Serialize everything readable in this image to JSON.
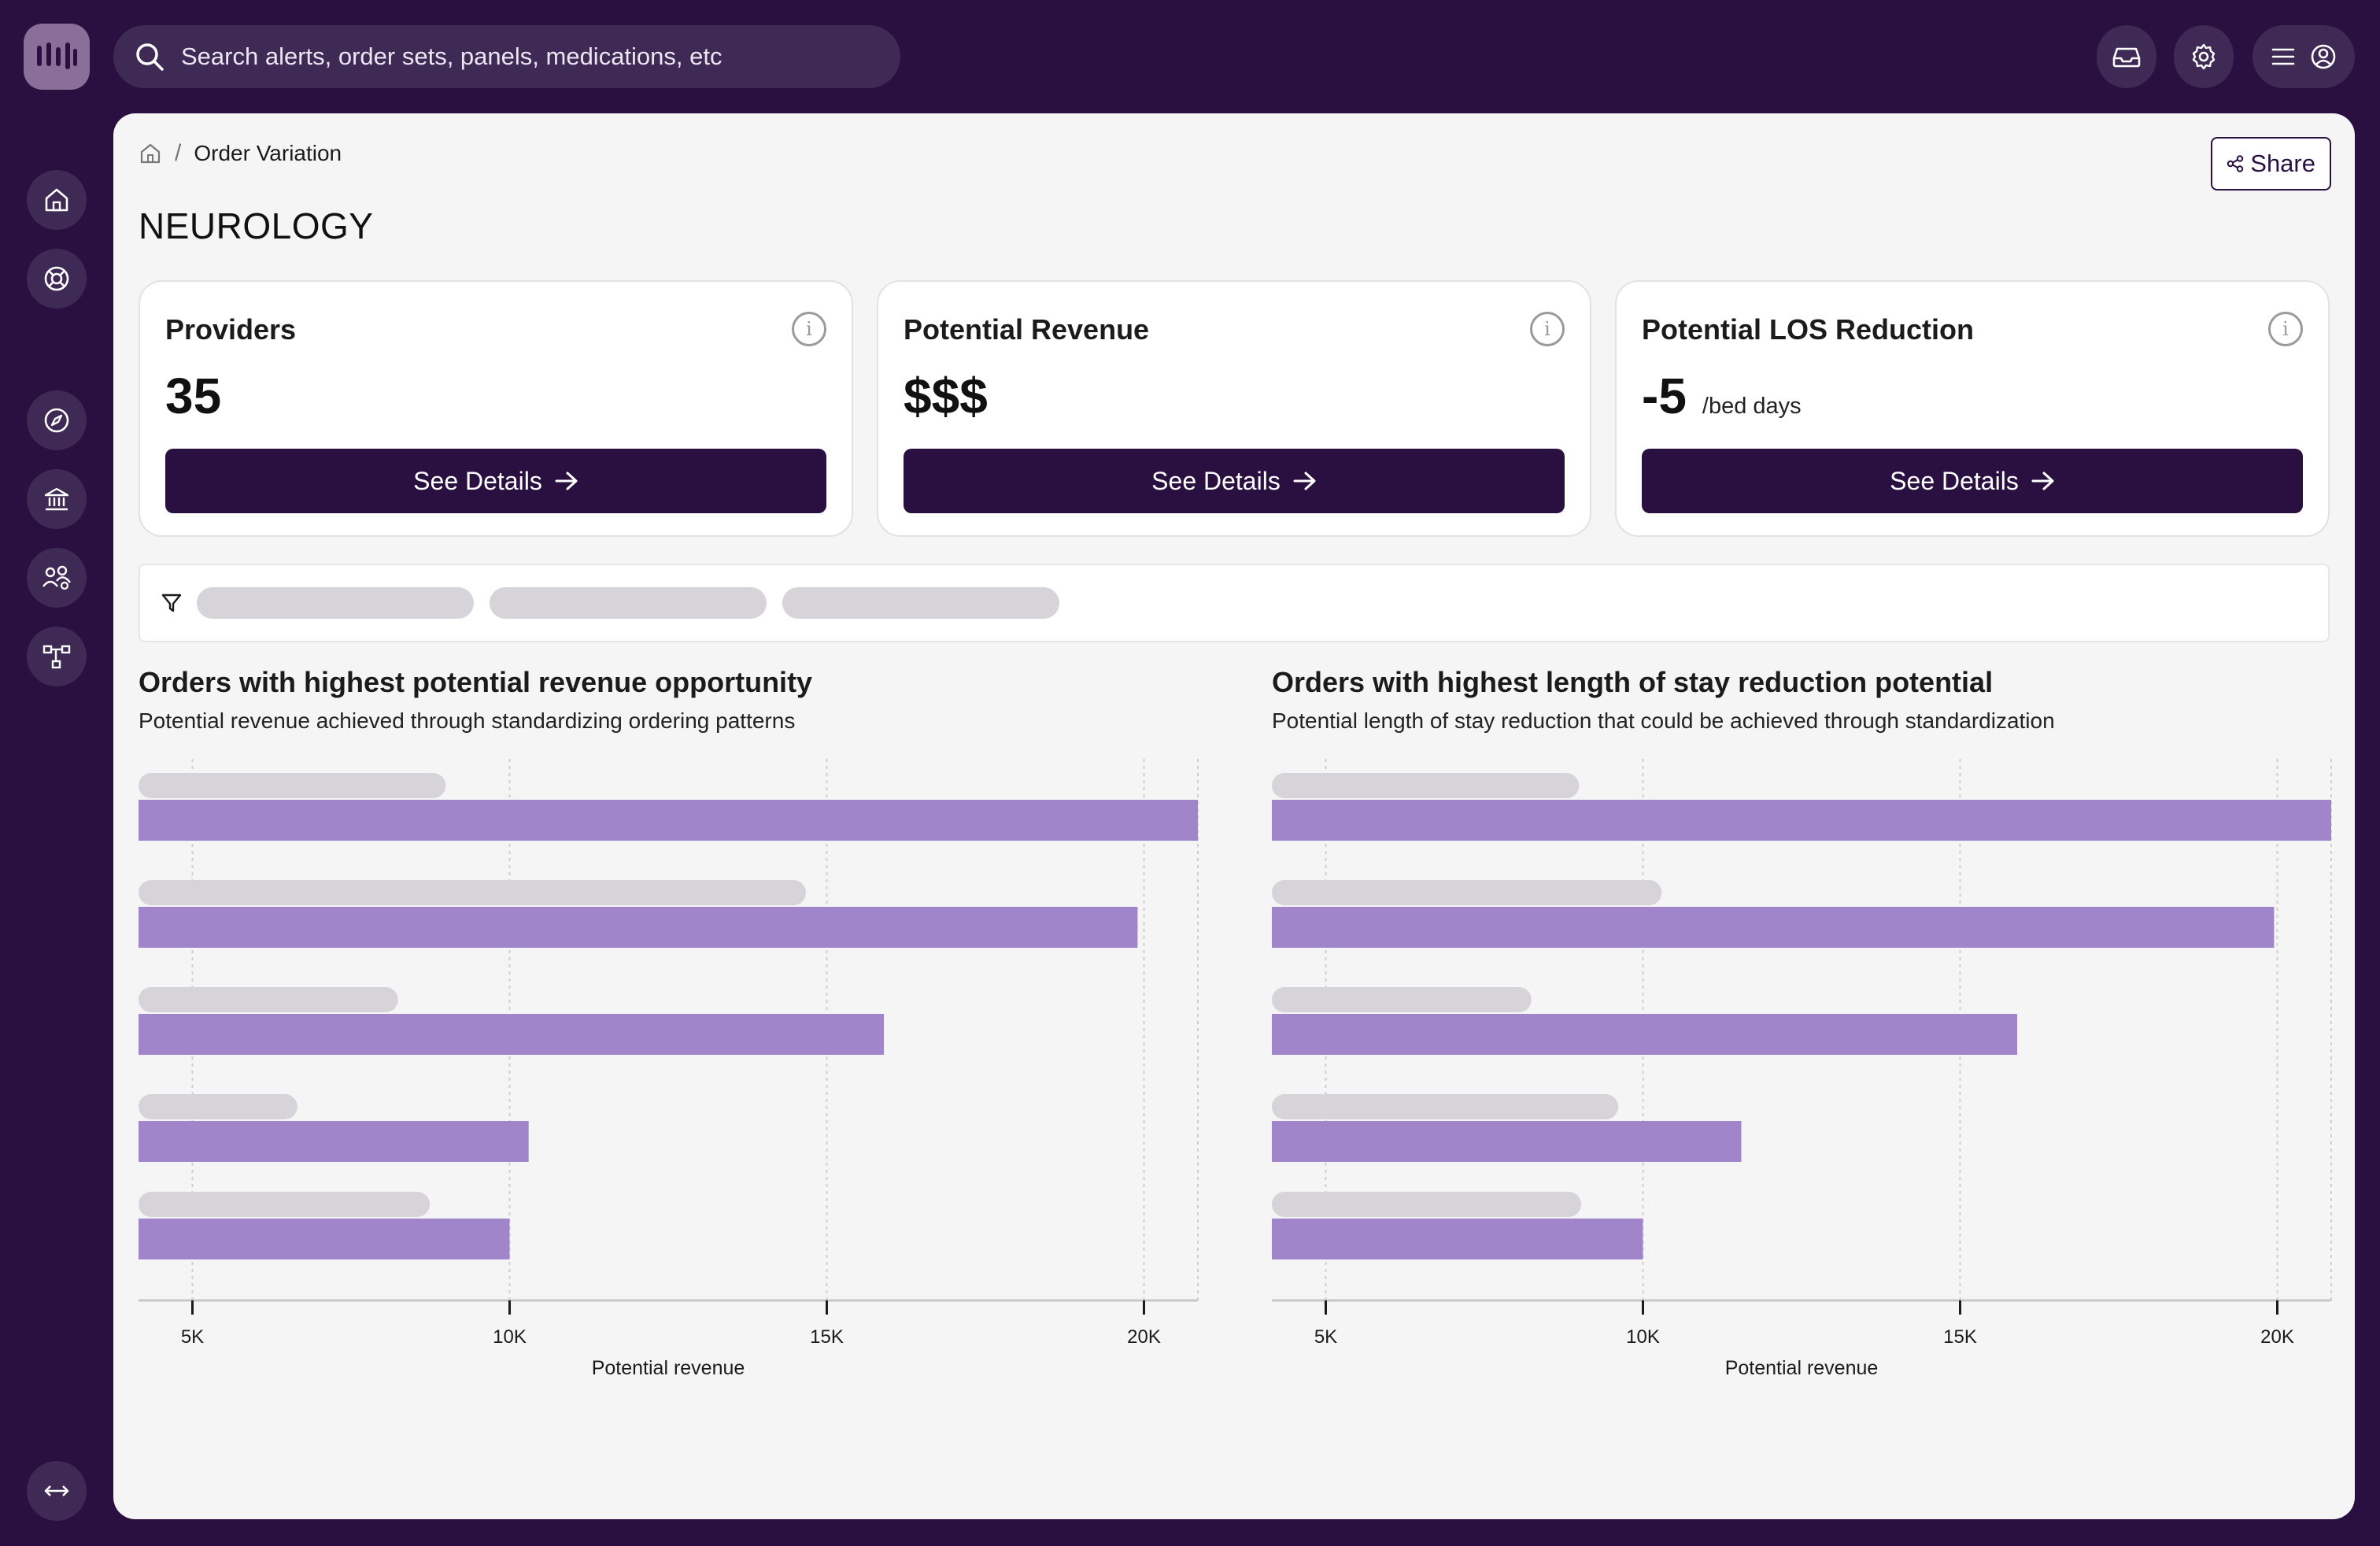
{
  "topbar": {
    "search_placeholder": "Search alerts, order sets, panels, medications, etc",
    "icons": [
      "logo-icon",
      "search-icon",
      "inbox-icon",
      "gear-icon",
      "menu-icon",
      "user-icon"
    ]
  },
  "rail": {
    "icons": [
      "home-icon",
      "lifebuoy-icon",
      "compass-icon",
      "bank-icon",
      "users-icon",
      "network-icon",
      "expand-horizontal-icon"
    ]
  },
  "breadcrumb": {
    "current": "Order Variation",
    "separator": "/"
  },
  "share_label": "Share",
  "page_title": "NEUROLOGY",
  "cards": [
    {
      "title": "Providers",
      "value": "35",
      "unit": "",
      "button": "See Details"
    },
    {
      "title": "Potential Revenue",
      "value": "$$$",
      "unit": "",
      "button": "See Details"
    },
    {
      "title": "Potential LOS Reduction",
      "value": "-5",
      "unit": "/bed days",
      "button": "See Details"
    }
  ],
  "colors": {
    "brand": "#2a1040",
    "bar": "#a085ca",
    "placeholder": "#d6d3d9",
    "panel": "#f5f5f5"
  },
  "chart_data": [
    {
      "type": "bar",
      "orientation": "horizontal",
      "title": "Orders with highest potential revenue opportunity",
      "subtitle": "Potential revenue achieved through standardizing ordering patterns",
      "xlabel": "Potential revenue",
      "xticks": [
        "5K",
        "10K",
        "15K",
        "20K"
      ],
      "xtick_values": [
        5000,
        10000,
        15000,
        20000
      ],
      "xlim": [
        4150,
        20850
      ],
      "grid": true,
      "categories_visible": false,
      "category_placeholder_fractions": [
        0.29,
        0.63,
        0.245,
        0.15,
        0.275
      ],
      "values": [
        20850,
        19900,
        15900,
        10300,
        10000
      ]
    },
    {
      "type": "bar",
      "orientation": "horizontal",
      "title": "Orders with highest length of stay reduction potential",
      "subtitle": "Potential length of stay reduction that could be achieved through standardization",
      "xlabel": "Potential revenue",
      "xticks": [
        "5K",
        "10K",
        "15K",
        "20K"
      ],
      "xtick_values": [
        5000,
        10000,
        15000,
        20000
      ],
      "xlim": [
        4150,
        20850
      ],
      "grid": true,
      "categories_visible": false,
      "category_placeholder_fractions": [
        0.29,
        0.368,
        0.245,
        0.327,
        0.292
      ],
      "values": [
        20850,
        19950,
        15900,
        11550,
        10000
      ]
    }
  ]
}
